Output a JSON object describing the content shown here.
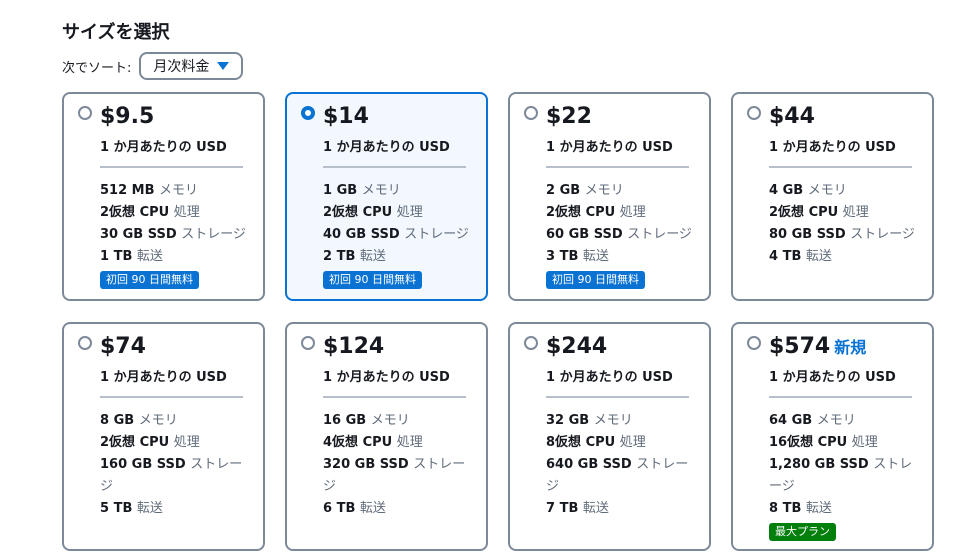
{
  "title": "サイズを選択",
  "sort": {
    "label": "次でソート:",
    "value": "月次料金"
  },
  "plans": [
    {
      "price": "$9.5",
      "unit": "1 か月あたりの USD",
      "selected": false,
      "specs": [
        [
          "512 MB",
          "メモリ"
        ],
        [
          "2仮想 CPU",
          "処理"
        ],
        [
          "30 GB SSD",
          "ストレージ"
        ],
        [
          "1 TB",
          "転送"
        ]
      ],
      "badge": "初回 90 日間無料",
      "badge_color": "#0972d3"
    },
    {
      "price": "$14",
      "unit": "1 か月あたりの USD",
      "selected": true,
      "specs": [
        [
          "1 GB",
          "メモリ"
        ],
        [
          "2仮想 CPU",
          "処理"
        ],
        [
          "40 GB SSD",
          "ストレージ"
        ],
        [
          "2 TB",
          "転送"
        ]
      ],
      "badge": "初回 90 日間無料",
      "badge_color": "#0972d3"
    },
    {
      "price": "$22",
      "unit": "1 か月あたりの USD",
      "selected": false,
      "specs": [
        [
          "2 GB",
          "メモリ"
        ],
        [
          "2仮想 CPU",
          "処理"
        ],
        [
          "60 GB SSD",
          "ストレージ"
        ],
        [
          "3 TB",
          "転送"
        ]
      ],
      "badge": "初回 90 日間無料",
      "badge_color": "#0972d3"
    },
    {
      "price": "$44",
      "unit": "1 か月あたりの USD",
      "selected": false,
      "specs": [
        [
          "4 GB",
          "メモリ"
        ],
        [
          "2仮想 CPU",
          "処理"
        ],
        [
          "80 GB SSD",
          "ストレージ"
        ],
        [
          "4 TB",
          "転送"
        ]
      ]
    },
    {
      "price": "$74",
      "unit": "1 か月あたりの USD",
      "selected": false,
      "specs": [
        [
          "8 GB",
          "メモリ"
        ],
        [
          "2仮想 CPU",
          "処理"
        ],
        [
          "160 GB SSD",
          "ストレージ"
        ],
        [
          "5 TB",
          "転送"
        ]
      ]
    },
    {
      "price": "$124",
      "unit": "1 か月あたりの USD",
      "selected": false,
      "specs": [
        [
          "16 GB",
          "メモリ"
        ],
        [
          "4仮想 CPU",
          "処理"
        ],
        [
          "320 GB SSD",
          "ストレージ"
        ],
        [
          "6 TB",
          "転送"
        ]
      ]
    },
    {
      "price": "$244",
      "unit": "1 か月あたりの USD",
      "selected": false,
      "specs": [
        [
          "32 GB",
          "メモリ"
        ],
        [
          "8仮想 CPU",
          "処理"
        ],
        [
          "640 GB SSD",
          "ストレージ"
        ],
        [
          "7 TB",
          "転送"
        ]
      ]
    },
    {
      "price": "$574",
      "new_label": "新規",
      "unit": "1 か月あたりの USD",
      "selected": false,
      "specs": [
        [
          "64 GB",
          "メモリ"
        ],
        [
          "16仮想 CPU",
          "処理"
        ],
        [
          "1,280 GB SSD",
          "ストレージ"
        ],
        [
          "8 TB",
          "転送"
        ]
      ],
      "badge": "最大プラン",
      "badge_color": "#037f0c"
    }
  ]
}
